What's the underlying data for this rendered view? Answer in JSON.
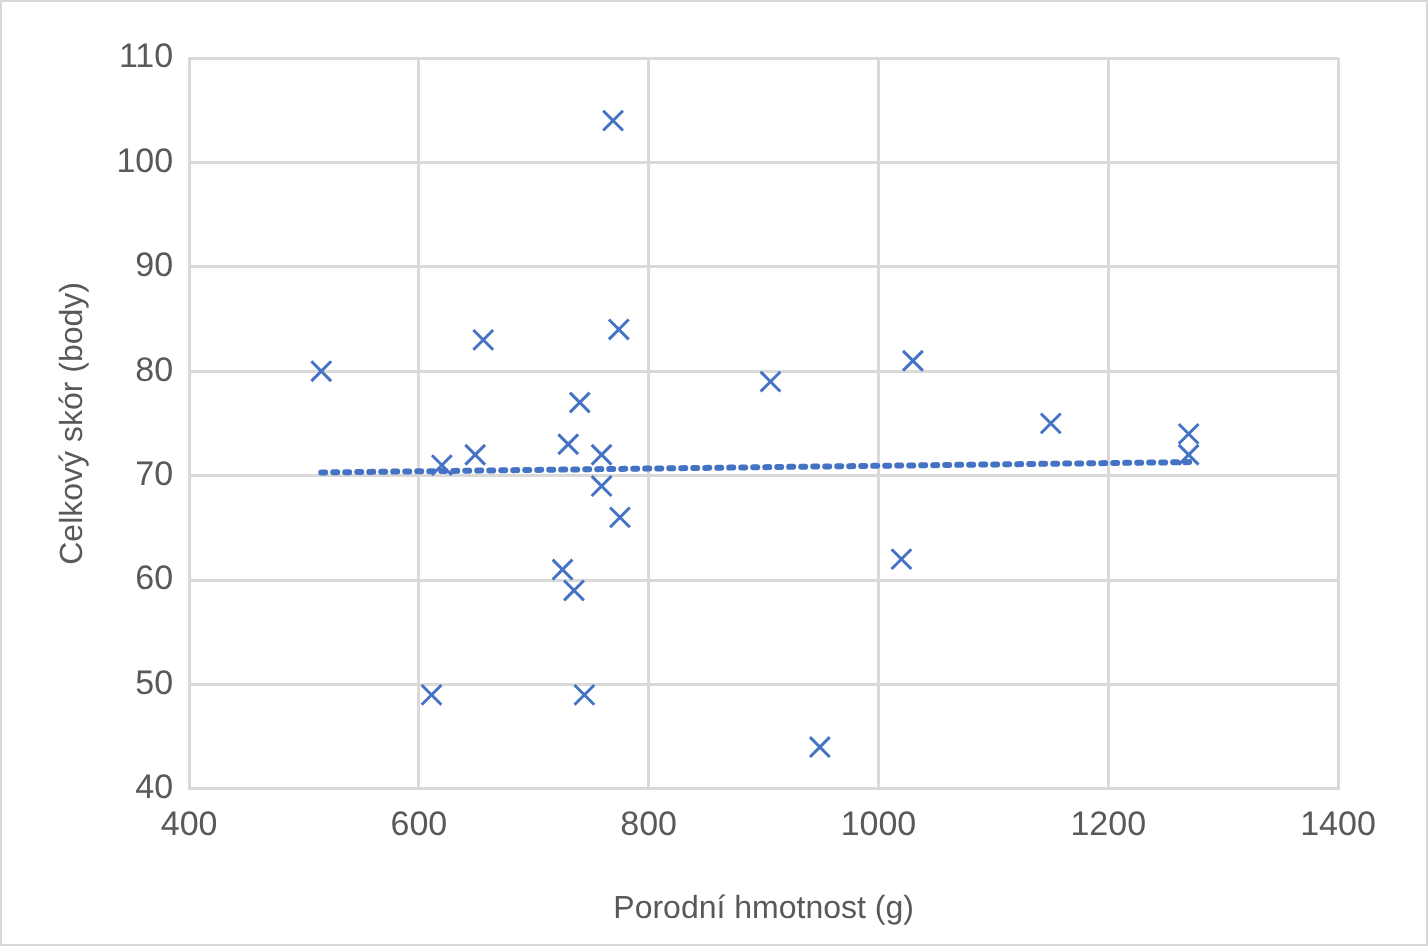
{
  "chart_data": {
    "type": "scatter",
    "xlabel": "Porodní hmotnost (g)",
    "ylabel": "Celkový skór (body)",
    "xlim": [
      400,
      1400
    ],
    "xticks": [
      400,
      600,
      800,
      1000,
      1200,
      1400
    ],
    "ylim": [
      40,
      110
    ],
    "yticks": [
      40,
      50,
      60,
      70,
      80,
      90,
      100,
      110
    ],
    "grid": true,
    "legend": false,
    "marker": "cross",
    "series": [
      {
        "color": "#4472c4",
        "x": [
          769,
          515,
          656,
          774,
          906,
          740,
          730,
          649,
          620,
          759,
          759,
          775,
          725,
          735,
          611,
          744,
          949,
          1030,
          1150,
          1270,
          1270,
          1020
        ],
        "values": [
          104,
          80,
          83,
          84,
          79,
          77,
          73,
          72,
          71,
          72,
          69,
          66,
          61,
          59,
          49,
          49,
          44,
          81,
          75,
          74,
          72,
          62
        ]
      },
      {
        "type": "line",
        "color": "#4472c4",
        "line_style": "dotted",
        "marker": "none",
        "x": [
          515,
          1275
        ],
        "values": [
          70.3,
          71.3
        ]
      }
    ]
  }
}
